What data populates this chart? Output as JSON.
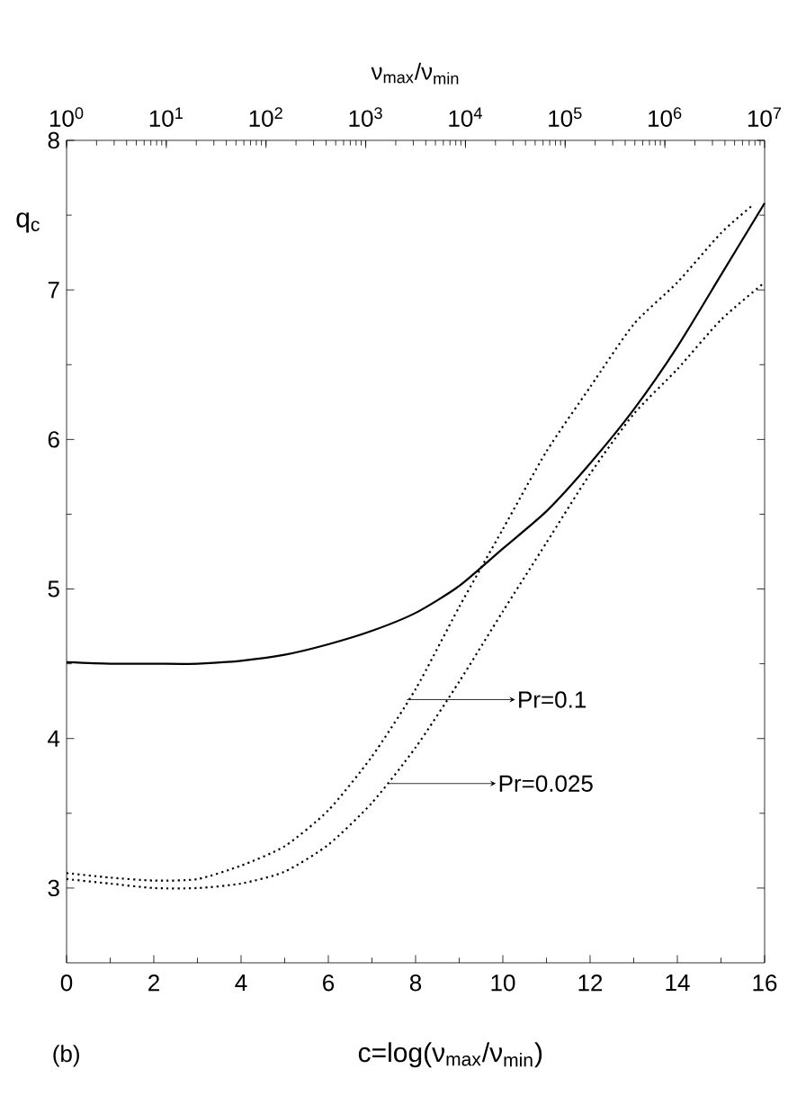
{
  "chart_data": {
    "type": "line",
    "xlabel": "c=log(ν$_{max}$/ν$_{min}$)",
    "ylabel": "q$_{c}$",
    "x2label": "ν$_{max}$/ν$_{min}$",
    "x": [
      0,
      1,
      2,
      3,
      4,
      5,
      6,
      7,
      8,
      9,
      10,
      11,
      12,
      13,
      14,
      15,
      16
    ],
    "series": [
      {
        "color": "#000000",
        "line_style": "solid",
        "values": [
          4.51,
          4.5,
          4.5,
          4.5,
          4.52,
          4.56,
          4.63,
          4.72,
          4.84,
          5.02,
          5.27,
          5.52,
          5.84,
          6.2,
          6.62,
          7.1,
          7.58
        ]
      },
      {
        "color": "#000000",
        "line_style": "dotted",
        "x": [
          0,
          1,
          2,
          3,
          4,
          5,
          6,
          7,
          8,
          9,
          10,
          11,
          12,
          13,
          14,
          15,
          15.7
        ],
        "values": [
          3.1,
          3.07,
          3.05,
          3.06,
          3.15,
          3.28,
          3.52,
          3.88,
          4.33,
          4.88,
          5.4,
          5.92,
          6.35,
          6.77,
          7.05,
          7.38,
          7.56
        ]
      },
      {
        "color": "#000000",
        "line_style": "dotted",
        "values": [
          3.06,
          3.03,
          3.0,
          3.0,
          3.03,
          3.11,
          3.29,
          3.57,
          3.94,
          4.38,
          4.85,
          5.31,
          5.77,
          6.17,
          6.47,
          6.8,
          7.05
        ]
      }
    ],
    "xlim": [
      0,
      16
    ],
    "xticks": [
      0,
      2,
      4,
      6,
      8,
      10,
      12,
      14,
      16
    ],
    "ylim": [
      2.5,
      8
    ],
    "yticks": [
      3,
      4,
      5,
      6,
      7,
      8
    ],
    "x2lim": [
      1,
      10000000
    ],
    "log": "x2",
    "x2ticks": [
      {
        "value": 1,
        "label": "10$^{0}$"
      },
      {
        "value": 10,
        "label": "10$^{1}$"
      },
      {
        "value": 100,
        "label": "10$^{2}$"
      },
      {
        "value": 1000,
        "label": "10$^{3}$"
      },
      {
        "value": 10000,
        "label": "10$^{4}$"
      },
      {
        "value": 100000,
        "label": "10$^{5}$"
      },
      {
        "value": 1000000,
        "label": "10$^{6}$"
      },
      {
        "value": 10000000,
        "label": "10$^{7}$"
      }
    ],
    "annotations": [
      "Pr=0.1",
      "Pr=0.025",
      "(b)"
    ]
  }
}
